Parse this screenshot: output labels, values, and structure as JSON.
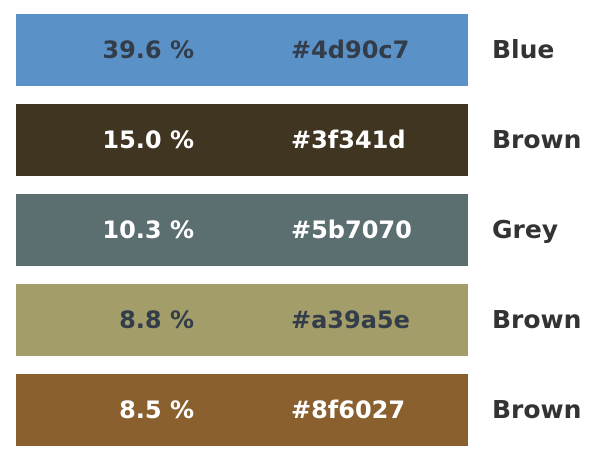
{
  "palette": {
    "colors": [
      {
        "percent": "39.6 %",
        "hex": "#4d90c7",
        "name": "Blue",
        "swatch_color": "#5a91c6",
        "text_color": "#333d4a"
      },
      {
        "percent": "15.0 %",
        "hex": "#3f341d",
        "name": "Brown",
        "swatch_color": "#3f3520",
        "text_color": "#ffffff"
      },
      {
        "percent": "10.3 %",
        "hex": "#5b7070",
        "name": "Grey",
        "swatch_color": "#5b6f70",
        "text_color": "#ffffff"
      },
      {
        "percent": "8.8 %",
        "hex": "#a39a5e",
        "name": "Brown",
        "swatch_color": "#a39d69",
        "text_color": "#333d4a"
      },
      {
        "percent": "8.5 %",
        "hex": "#8f6027",
        "name": "Brown",
        "swatch_color": "#8b602f",
        "text_color": "#ffffff"
      }
    ]
  }
}
